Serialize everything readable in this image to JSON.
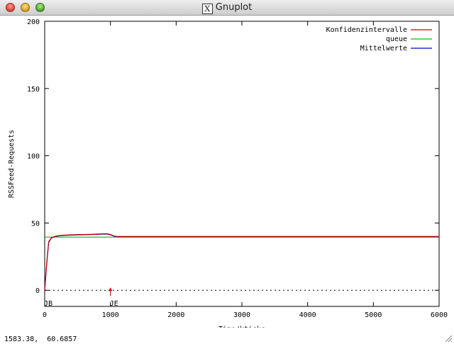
{
  "window": {
    "title": "Gnuplot",
    "logo_letter": "X",
    "status": "1583.38,  60.6857"
  },
  "colors": {
    "konfidenz": "#cc0000",
    "queue": "#00c000",
    "mittel": "#0000cc",
    "zero_line": "#000000",
    "arrow": "#cc0000"
  },
  "chart_data": {
    "type": "line",
    "xlabel": "Time/kticks",
    "ylabel": "RSSFeed-Requests",
    "xlim": [
      0,
      6000
    ],
    "ylim": [
      -12,
      200
    ],
    "xticks": [
      0,
      1000,
      2000,
      3000,
      4000,
      5000,
      6000
    ],
    "yticks": [
      0,
      50,
      100,
      150,
      200
    ],
    "grid": false,
    "legend_position": "top-right",
    "series": [
      {
        "name": "Konfidenzintervalle",
        "color": "#cc0000",
        "x": [
          0,
          30,
          60,
          100,
          150,
          200,
          300,
          400,
          500,
          600,
          700,
          800,
          900,
          950,
          1000,
          1050,
          1100,
          1200,
          1500,
          2000,
          2500,
          3000,
          3500,
          4000,
          4500,
          5000,
          5500,
          6000
        ],
        "y": [
          0,
          20,
          36,
          39,
          40,
          40.5,
          41,
          41.2,
          41.4,
          41.5,
          41.6,
          41.8,
          42,
          42,
          41.5,
          40.5,
          40,
          40,
          40,
          40,
          40,
          40,
          40,
          40,
          40,
          40,
          40,
          40
        ]
      },
      {
        "name": "queue",
        "color": "#00c000",
        "x": [
          0,
          6000
        ],
        "y": [
          39.5,
          39.5
        ]
      },
      {
        "name": "Mittelwerte",
        "color": "#0000cc",
        "x": [
          0,
          30,
          60,
          100,
          150,
          200,
          300,
          400,
          500,
          600,
          700,
          800,
          900,
          950,
          1000,
          1050,
          1100,
          1200,
          1500,
          2000,
          2500,
          3000,
          3500,
          4000,
          4500,
          5000,
          5500,
          6000
        ],
        "y": [
          0,
          19,
          35.5,
          38.8,
          39.8,
          40.3,
          40.8,
          41,
          41.2,
          41.3,
          41.4,
          41.6,
          41.8,
          41.8,
          41.2,
          40.3,
          39.8,
          39.8,
          39.8,
          39.8,
          39.8,
          39.8,
          39.8,
          39.8,
          39.8,
          39.8,
          39.8,
          39.8
        ]
      }
    ],
    "annotations": [
      {
        "label": "JB",
        "x": 0
      },
      {
        "label": "JE",
        "x": 1000
      }
    ]
  }
}
